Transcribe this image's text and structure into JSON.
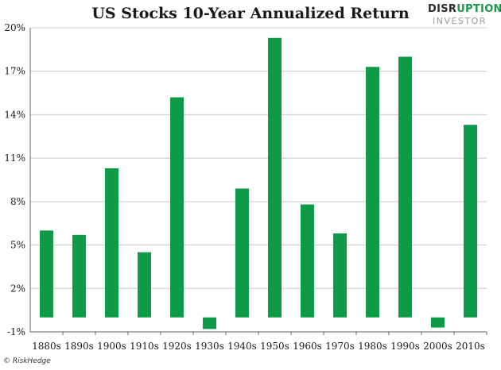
{
  "header": {
    "title": "US Stocks 10-Year Annualized Return"
  },
  "logo": {
    "line1_a": "DISR",
    "line1_b": "UPTION",
    "line2": "INVESTOR"
  },
  "credit": "© RiskHedge",
  "colors": {
    "bar": "#0e9b48",
    "grid": "#c8c8c8",
    "axis": "#666666"
  },
  "chart_data": {
    "type": "bar",
    "title": "US Stocks 10-Year Annualized Return",
    "xlabel": "",
    "ylabel": "",
    "categories": [
      "1880s",
      "1890s",
      "1900s",
      "1910s",
      "1920s",
      "1930s",
      "1940s",
      "1950s",
      "1960s",
      "1970s",
      "1980s",
      "1990s",
      "2000s",
      "2010s"
    ],
    "values": [
      6.0,
      5.7,
      10.3,
      4.5,
      15.2,
      -0.8,
      8.9,
      19.3,
      7.8,
      5.8,
      17.3,
      18.0,
      -0.7,
      13.3
    ],
    "ylim": [
      -1,
      20
    ],
    "yticks": [
      -1,
      2,
      5,
      8,
      11,
      14,
      17,
      20
    ],
    "ytick_labels": [
      "-1%",
      "2%",
      "5%",
      "8%",
      "11%",
      "14%",
      "17%",
      "20%"
    ],
    "grid": true,
    "legend": "none"
  }
}
